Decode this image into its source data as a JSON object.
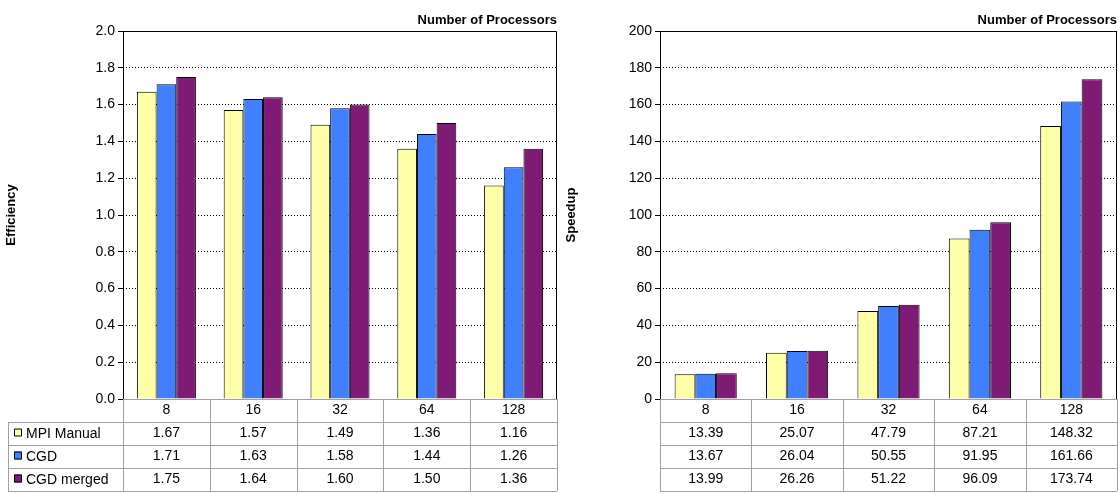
{
  "chart_data": [
    {
      "type": "bar",
      "xlabel": "Number of Processors",
      "ylabel": "Efficiency",
      "categories": [
        "8",
        "16",
        "32",
        "64",
        "128"
      ],
      "series": [
        {
          "name": "MPI Manual",
          "color": "#ffffa8",
          "values": [
            1.67,
            1.57,
            1.49,
            1.36,
            1.16
          ],
          "value_labels": [
            "1.67",
            "1.57",
            "1.49",
            "1.36",
            "1.16"
          ]
        },
        {
          "name": "CGD",
          "color": "#4080ff",
          "values": [
            1.71,
            1.63,
            1.58,
            1.44,
            1.26
          ],
          "value_labels": [
            "1.71",
            "1.63",
            "1.58",
            "1.44",
            "1.26"
          ]
        },
        {
          "name": "CGD merged",
          "color": "#7f1a75",
          "values": [
            1.75,
            1.64,
            1.6,
            1.5,
            1.36
          ],
          "value_labels": [
            "1.75",
            "1.64",
            "1.60",
            "1.50",
            "1.36"
          ]
        }
      ],
      "ylim": [
        0,
        2
      ],
      "yticks": [
        {
          "value": 0,
          "label": "0.0"
        },
        {
          "value": 0.2,
          "label": "0.2"
        },
        {
          "value": 0.4,
          "label": "0.4"
        },
        {
          "value": 0.6,
          "label": "0.6"
        },
        {
          "value": 0.8,
          "label": "0.8"
        },
        {
          "value": 1,
          "label": "1.0"
        },
        {
          "value": 1.2,
          "label": "1.2"
        },
        {
          "value": 1.4,
          "label": "1.4"
        },
        {
          "value": 1.6,
          "label": "1.6"
        },
        {
          "value": 1.8,
          "label": "1.8"
        },
        {
          "value": 2,
          "label": "2.0"
        }
      ],
      "grid": "y",
      "legend": "bottom"
    },
    {
      "type": "bar",
      "xlabel": "Number of Processors",
      "ylabel": "Speedup",
      "categories": [
        "8",
        "16",
        "32",
        "64",
        "128"
      ],
      "series": [
        {
          "color": "#ffffa8",
          "values": [
            13.39,
            25.07,
            47.79,
            87.21,
            148.32
          ],
          "value_labels": [
            "13.39",
            "25.07",
            "47.79",
            "87.21",
            "148.32"
          ]
        },
        {
          "color": "#4080ff",
          "values": [
            13.67,
            26.04,
            50.55,
            91.95,
            161.66
          ],
          "value_labels": [
            "13.67",
            "26.04",
            "50.55",
            "91.95",
            "161.66"
          ]
        },
        {
          "color": "#7f1a75",
          "values": [
            13.99,
            26.26,
            51.22,
            96.09,
            173.74
          ],
          "value_labels": [
            "13.99",
            "26.26",
            "51.22",
            "96.09",
            "173.74"
          ]
        }
      ],
      "ylim": [
        0,
        200
      ],
      "yticks": [
        0,
        20,
        40,
        60,
        80,
        100,
        120,
        140,
        160,
        180,
        200
      ],
      "grid": "y"
    }
  ]
}
